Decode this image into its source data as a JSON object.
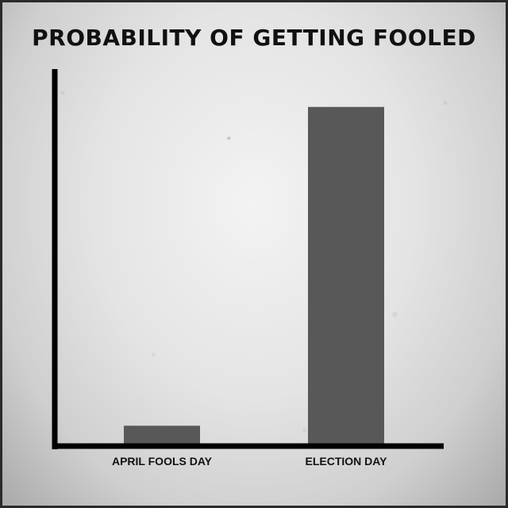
{
  "chart_data": {
    "type": "bar",
    "title": "PROBABILITY OF GETTING FOOLED",
    "categories": [
      "APRIL FOOLS DAY",
      "ELECTION DAY"
    ],
    "values": [
      6,
      100
    ],
    "xlabel": "",
    "ylabel": "",
    "ylim": [
      0,
      110
    ],
    "grid": false,
    "bar_color": "#585858",
    "axis_color": "#000000"
  }
}
